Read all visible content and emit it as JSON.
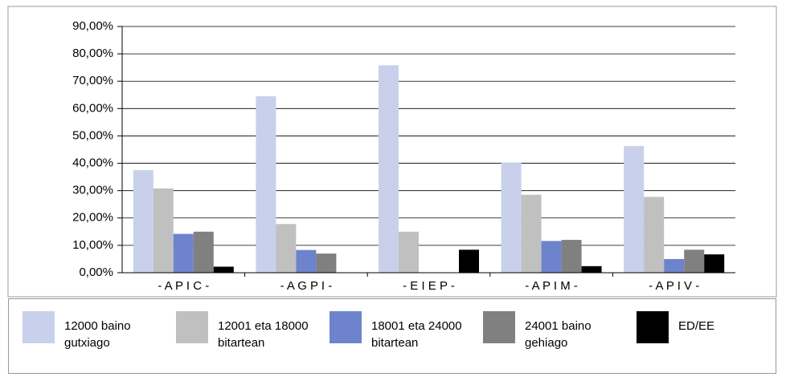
{
  "chart_data": {
    "type": "bar",
    "categories": [
      "- A P I C -",
      "- A G P I -",
      "- E I E P -",
      "- A P I M -",
      "- A P I V -"
    ],
    "series": [
      {
        "name": "12000 baino gutxiago",
        "color": "#c8d0ec",
        "values": [
          37.5,
          64.5,
          75.8,
          40.3,
          46.3
        ]
      },
      {
        "name": "12001 eta 18000 bitartean",
        "color": "#c0c0c0",
        "values": [
          30.8,
          17.8,
          15,
          28.5,
          27.7
        ]
      },
      {
        "name": "18001 eta 24000 bitartean",
        "color": "#6d83cc",
        "values": [
          14.2,
          8.3,
          0,
          11.6,
          5
        ]
      },
      {
        "name": "24001 baino gehiago",
        "color": "#808080",
        "values": [
          15,
          7,
          0,
          12,
          8.4
        ]
      },
      {
        "name": "ED/EE",
        "color": "#000000",
        "values": [
          2.2,
          0,
          8.4,
          2.4,
          6.7
        ]
      }
    ],
    "ylim": [
      0,
      90
    ],
    "yticks": [
      {
        "value": 0,
        "label": "0,00%"
      },
      {
        "value": 10,
        "label": "10,00%"
      },
      {
        "value": 20,
        "label": "20,00%"
      },
      {
        "value": 30,
        "label": "30,00%"
      },
      {
        "value": 40,
        "label": "40,00%"
      },
      {
        "value": 50,
        "label": "50,00%"
      },
      {
        "value": 60,
        "label": "60,00%"
      },
      {
        "value": 70,
        "label": "70,00%"
      },
      {
        "value": 80,
        "label": "80,00%"
      },
      {
        "value": 90,
        "label": "90,00%"
      }
    ],
    "grid": true
  }
}
